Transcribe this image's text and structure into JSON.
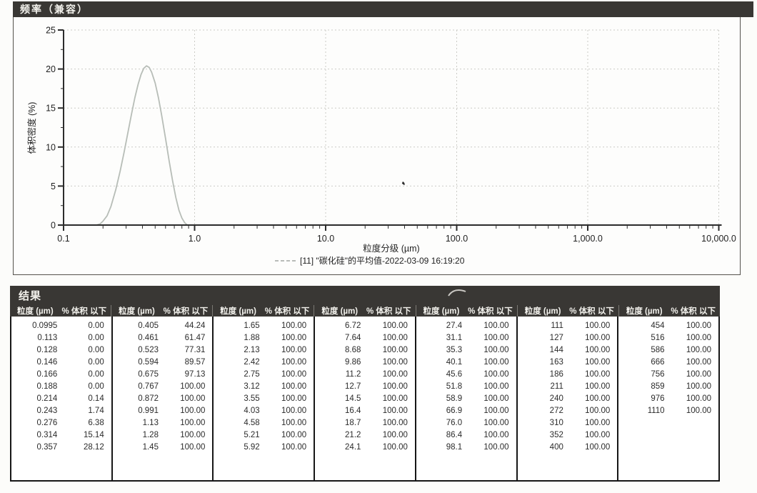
{
  "chart_panel": {
    "title": "频率（兼容）",
    "ylabel": "体积密度 (%)",
    "xlabel": "粒度分级 (µm)",
    "legend": "[11] \"碳化硅\"的平均值-2022-03-09 16:19:20",
    "y_ticks": [
      "0",
      "5",
      "10",
      "15",
      "20",
      "25"
    ],
    "x_ticks": [
      "0.1",
      "1.0",
      "10.0",
      "100.0",
      "1,000.0",
      "10,000.0"
    ]
  },
  "chart_data": {
    "type": "line",
    "title": "频率（兼容）",
    "xlabel": "粒度分级 (µm)",
    "ylabel": "体积密度 (%)",
    "x_scale": "log",
    "xlim": [
      0.1,
      10000
    ],
    "ylim": [
      0,
      25
    ],
    "grid": true,
    "legend_position": "bottom",
    "series": [
      {
        "name": "[11] \"碳化硅\"的平均值-2022-03-09 16:19:20",
        "color": "#b7bdb7",
        "peak": {
          "x_um": 0.43,
          "y_pct": 20.4
        },
        "points": [
          [
            0.178,
            0
          ],
          [
            0.19,
            0.15
          ],
          [
            0.2,
            0.5
          ],
          [
            0.215,
            1.2
          ],
          [
            0.23,
            2.4
          ],
          [
            0.25,
            4.5
          ],
          [
            0.27,
            6.9
          ],
          [
            0.29,
            9.4
          ],
          [
            0.31,
            11.9
          ],
          [
            0.33,
            14.2
          ],
          [
            0.35,
            16.3
          ],
          [
            0.37,
            18.0
          ],
          [
            0.39,
            19.3
          ],
          [
            0.41,
            20.1
          ],
          [
            0.43,
            20.4
          ],
          [
            0.45,
            20.2
          ],
          [
            0.47,
            19.6
          ],
          [
            0.5,
            18.2
          ],
          [
            0.53,
            16.3
          ],
          [
            0.56,
            14.1
          ],
          [
            0.6,
            11.1
          ],
          [
            0.64,
            8.2
          ],
          [
            0.68,
            5.6
          ],
          [
            0.72,
            3.5
          ],
          [
            0.76,
            1.9
          ],
          [
            0.8,
            0.9
          ],
          [
            0.84,
            0.3
          ],
          [
            0.88,
            0
          ]
        ]
      }
    ]
  },
  "table": {
    "title": "结果",
    "col_headers": [
      "粒度 (µm)",
      "% 体积 以下"
    ],
    "groups": [
      {
        "rows": [
          [
            "0.0995",
            "0.00"
          ],
          [
            "0.113",
            "0.00"
          ],
          [
            "0.128",
            "0.00"
          ],
          [
            "0.146",
            "0.00"
          ],
          [
            "0.166",
            "0.00"
          ],
          [
            "0.188",
            "0.00"
          ],
          [
            "0.214",
            "0.14"
          ],
          [
            "0.243",
            "1.74"
          ],
          [
            "0.276",
            "6.38"
          ],
          [
            "0.314",
            "15.14"
          ],
          [
            "0.357",
            "28.12"
          ]
        ]
      },
      {
        "rows": [
          [
            "0.405",
            "44.24"
          ],
          [
            "0.461",
            "61.47"
          ],
          [
            "0.523",
            "77.31"
          ],
          [
            "0.594",
            "89.57"
          ],
          [
            "0.675",
            "97.13"
          ],
          [
            "0.767",
            "100.00"
          ],
          [
            "0.872",
            "100.00"
          ],
          [
            "0.991",
            "100.00"
          ],
          [
            "1.13",
            "100.00"
          ],
          [
            "1.28",
            "100.00"
          ],
          [
            "1.45",
            "100.00"
          ]
        ]
      },
      {
        "rows": [
          [
            "1.65",
            "100.00"
          ],
          [
            "1.88",
            "100.00"
          ],
          [
            "2.13",
            "100.00"
          ],
          [
            "2.42",
            "100.00"
          ],
          [
            "2.75",
            "100.00"
          ],
          [
            "3.12",
            "100.00"
          ],
          [
            "3.55",
            "100.00"
          ],
          [
            "4.03",
            "100.00"
          ],
          [
            "4.58",
            "100.00"
          ],
          [
            "5.21",
            "100.00"
          ],
          [
            "5.92",
            "100.00"
          ]
        ]
      },
      {
        "rows": [
          [
            "6.72",
            "100.00"
          ],
          [
            "7.64",
            "100.00"
          ],
          [
            "8.68",
            "100.00"
          ],
          [
            "9.86",
            "100.00"
          ],
          [
            "11.2",
            "100.00"
          ],
          [
            "12.7",
            "100.00"
          ],
          [
            "14.5",
            "100.00"
          ],
          [
            "16.4",
            "100.00"
          ],
          [
            "18.7",
            "100.00"
          ],
          [
            "21.2",
            "100.00"
          ],
          [
            "24.1",
            "100.00"
          ]
        ]
      },
      {
        "rows": [
          [
            "27.4",
            "100.00"
          ],
          [
            "31.1",
            "100.00"
          ],
          [
            "35.3",
            "100.00"
          ],
          [
            "40.1",
            "100.00"
          ],
          [
            "45.6",
            "100.00"
          ],
          [
            "51.8",
            "100.00"
          ],
          [
            "58.9",
            "100.00"
          ],
          [
            "66.9",
            "100.00"
          ],
          [
            "76.0",
            "100.00"
          ],
          [
            "86.4",
            "100.00"
          ],
          [
            "98.1",
            "100.00"
          ]
        ]
      },
      {
        "rows": [
          [
            "111",
            "100.00"
          ],
          [
            "127",
            "100.00"
          ],
          [
            "144",
            "100.00"
          ],
          [
            "163",
            "100.00"
          ],
          [
            "186",
            "100.00"
          ],
          [
            "211",
            "100.00"
          ],
          [
            "240",
            "100.00"
          ],
          [
            "272",
            "100.00"
          ],
          [
            "310",
            "100.00"
          ],
          [
            "352",
            "100.00"
          ],
          [
            "400",
            "100.00"
          ]
        ]
      },
      {
        "rows": [
          [
            "454",
            "100.00"
          ],
          [
            "516",
            "100.00"
          ],
          [
            "586",
            "100.00"
          ],
          [
            "666",
            "100.00"
          ],
          [
            "756",
            "100.00"
          ],
          [
            "859",
            "100.00"
          ],
          [
            "976",
            "100.00"
          ],
          [
            "1110",
            "100.00"
          ]
        ]
      }
    ]
  },
  "colors": {
    "band_bg": "#393734",
    "band_text": "#f2f1ec",
    "curve": "#b7bdb7",
    "grid": "#cbcbc6",
    "axis": "#2c2c2c",
    "table_border": "#161616"
  }
}
